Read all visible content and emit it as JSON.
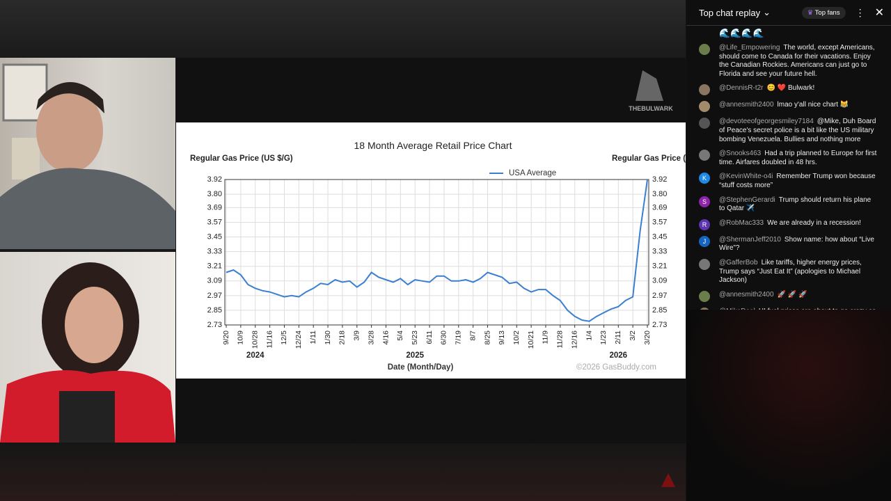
{
  "chart_data": {
    "type": "line",
    "title": "18 Month Average Retail Price Chart",
    "y_label": "Regular Gas Price (US $/G)",
    "y2_label": "Regular Gas Price (US $/G)",
    "x_label": "Date (Month/Day)",
    "credit": "©2026 GasBuddy.com",
    "categories": [
      "9/20",
      null,
      "10/9",
      null,
      "10/28",
      null,
      "11/16",
      null,
      "12/5",
      null,
      "12/24",
      null,
      "1/11",
      null,
      "1/30",
      null,
      "2/18",
      null,
      "3/9",
      null,
      "3/28",
      null,
      "4/16",
      null,
      "5/4",
      null,
      "5/23",
      null,
      "6/11",
      null,
      "6/30",
      null,
      "7/19",
      null,
      "8/7",
      null,
      "8/25",
      null,
      "9/13",
      null,
      "10/2",
      null,
      "10/21",
      null,
      "11/9",
      null,
      "11/28",
      null,
      "12/16",
      null,
      "1/4",
      null,
      "1/23",
      null,
      "2/11",
      null,
      "3/2",
      null,
      "3/20"
    ],
    "year_labels": [
      "2024",
      "2025",
      "2026"
    ],
    "series": [
      {
        "name": "USA Average",
        "color": "#3a7fd0",
        "values": [
          3.16,
          3.18,
          3.14,
          3.06,
          3.03,
          3.01,
          3.0,
          2.98,
          2.96,
          2.97,
          2.96,
          3.0,
          3.03,
          3.07,
          3.06,
          3.1,
          3.08,
          3.09,
          3.04,
          3.08,
          3.16,
          3.12,
          3.1,
          3.08,
          3.11,
          3.06,
          3.1,
          3.09,
          3.08,
          3.13,
          3.13,
          3.09,
          3.09,
          3.1,
          3.08,
          3.11,
          3.16,
          3.14,
          3.12,
          3.07,
          3.08,
          3.03,
          3.0,
          3.02,
          3.02,
          2.97,
          2.93,
          2.85,
          2.8,
          2.77,
          2.76,
          2.8,
          2.83,
          2.86,
          2.88,
          2.93,
          2.96,
          3.5,
          3.92
        ]
      }
    ],
    "ylim": [
      2.73,
      3.92
    ],
    "yticks": [
      2.73,
      2.85,
      2.97,
      3.09,
      3.21,
      3.33,
      3.45,
      3.57,
      3.69,
      {
        "value": 3.8,
        "label": "3.80"
      },
      3.92
    ],
    "grid": true,
    "legend": "top-right"
  },
  "logo": "THEBULWARK",
  "chat": {
    "header": "Top chat replay",
    "top_fans": "Top fans",
    "partial_top": "🌊🌊🌊🌊",
    "messages": [
      {
        "avatar": "",
        "author": "@Life_Empowering",
        "text": "The world, except Americans, should come to Canada for their vacations. Enjoy the Canadian Rockies. Americans can just go to Florida and see your future hell."
      },
      {
        "avatar": "",
        "author": "@DennisR-t2r",
        "text": "😊 ❤️ Bulwark!"
      },
      {
        "avatar": "",
        "author": "@annesmith2400",
        "text": "lmao y'all nice chart 😹"
      },
      {
        "avatar": "",
        "author": "@devoteeofgeorgesmiley7184",
        "text": "@Mike, Duh Board of Peace's secret police is a bit like the US military bombing Venezuela. Bullies and nothing more"
      },
      {
        "avatar": "",
        "author": "@Snooks463",
        "text": "Had a trip planned to Europe for first time. Airfares doubled in 48 hrs."
      },
      {
        "avatar": "K",
        "author": "@KevinWhite-o4i",
        "text": "Remember Trump won because “stuff costs more”"
      },
      {
        "avatar": "S",
        "author": "@StephenGerardi",
        "text": "Trump should return his plane to Qatar ✈️"
      },
      {
        "avatar": "R",
        "author": "@RobMac333",
        "text": "We are already in a recession!"
      },
      {
        "avatar": "J",
        "author": "@ShermanJeff2010",
        "text": "Show name: how about “Live Wire”?"
      },
      {
        "avatar": "",
        "author": "@GafferBob",
        "text": "Like tariffs, higher energy prices, Trump says “Just Eat It” (apologies to Michael Jackson)"
      },
      {
        "avatar": "",
        "author": "@annesmith2400",
        "text": "🚀 🚀 🚀"
      },
      {
        "avatar": "",
        "author": "@MikeDeal",
        "text": "HI fuel prices are about to go crazy as"
      }
    ]
  }
}
